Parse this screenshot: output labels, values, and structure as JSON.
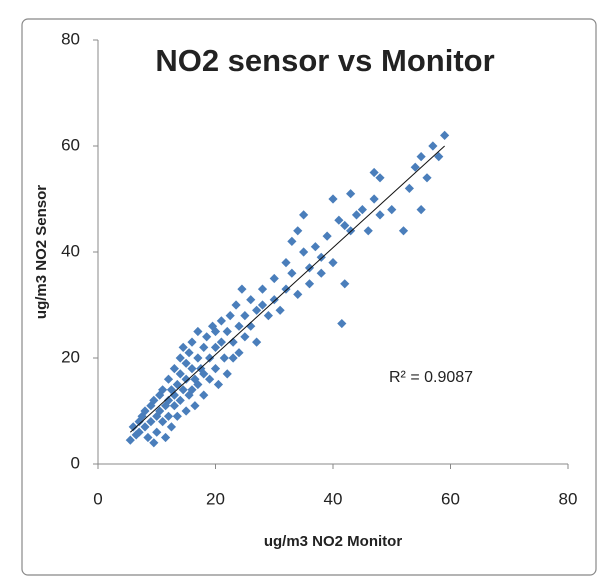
{
  "chart_data": {
    "type": "scatter",
    "title": "NO2 sensor vs Monitor",
    "x_label": "ug/m3 NO2 Monitor",
    "y_label": "ug/m3 NO2  Sensor",
    "annotation": "R² = 0.9087",
    "color": "#4a7ebb",
    "xlim": [
      0,
      80
    ],
    "ylim": [
      0,
      80
    ],
    "xticks": [
      0,
      20,
      40,
      60,
      80
    ],
    "yticks": [
      0,
      20,
      40,
      60,
      80
    ],
    "grid": false,
    "x": [
      5.5,
      6,
      6.5,
      7,
      7,
      7.5,
      8,
      8,
      8.5,
      9,
      9,
      9.5,
      9.5,
      10,
      10,
      10.5,
      10.5,
      11,
      11,
      11.5,
      11.5,
      12,
      12,
      12,
      12.5,
      12.5,
      13,
      13,
      13,
      13.5,
      13.5,
      14,
      14,
      14,
      14.5,
      14.5,
      15,
      15,
      15,
      15.5,
      15.5,
      16,
      16,
      16,
      16.5,
      16.5,
      17,
      17,
      17,
      17.5,
      18,
      18,
      18,
      18.5,
      19,
      19,
      19.5,
      20,
      20,
      20,
      20.5,
      21,
      21,
      21.5,
      22,
      22,
      22.5,
      23,
      23,
      23.5,
      24,
      24,
      24.5,
      25,
      25,
      26,
      26,
      27,
      27,
      28,
      28,
      29,
      30,
      30,
      31,
      32,
      32,
      33,
      33,
      34,
      34,
      35,
      35,
      36,
      36,
      37,
      38,
      38,
      39,
      40,
      40,
      41,
      41.5,
      42,
      42,
      43,
      43,
      44,
      45,
      46,
      47,
      47,
      48,
      48,
      50,
      52,
      53,
      54,
      55,
      55,
      56,
      57,
      58,
      59
    ],
    "y": [
      4.5,
      7,
      5.5,
      8,
      6,
      9,
      7,
      10,
      5,
      11,
      8,
      4,
      12,
      9,
      6,
      13,
      10,
      8,
      14,
      11,
      5,
      12,
      16,
      9,
      14,
      7,
      18,
      11,
      13,
      15,
      9,
      20,
      12,
      17,
      14,
      22,
      16,
      10,
      19,
      13,
      21,
      18,
      14,
      23,
      16,
      11,
      20,
      25,
      15,
      18,
      22,
      13,
      17,
      24,
      20,
      16,
      26,
      22,
      18,
      25,
      15,
      23,
      27,
      20,
      25,
      17,
      28,
      23,
      20,
      30,
      26,
      21,
      33,
      24,
      28,
      26,
      31,
      29,
      23,
      30,
      33,
      28,
      31,
      35,
      29,
      38,
      33,
      42,
      36,
      44,
      32,
      40,
      47,
      37,
      34,
      41,
      39,
      36,
      43,
      50,
      38,
      46,
      26.5,
      45,
      34,
      44,
      51,
      47,
      48,
      44,
      55,
      50,
      54,
      47,
      48,
      44,
      52,
      56,
      58,
      48,
      54,
      60,
      58,
      62
    ],
    "trendline": {
      "x": [
        5.5,
        59
      ],
      "y": [
        6,
        60
      ]
    }
  }
}
